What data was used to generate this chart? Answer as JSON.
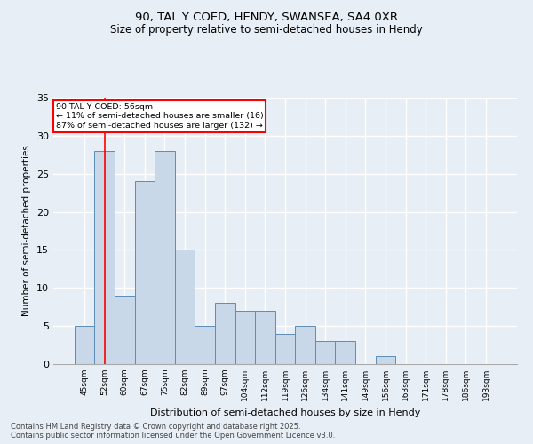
{
  "title1": "90, TAL Y COED, HENDY, SWANSEA, SA4 0XR",
  "title2": "Size of property relative to semi-detached houses in Hendy",
  "xlabel": "Distribution of semi-detached houses by size in Hendy",
  "ylabel": "Number of semi-detached properties",
  "categories": [
    "45sqm",
    "52sqm",
    "60sqm",
    "67sqm",
    "75sqm",
    "82sqm",
    "89sqm",
    "97sqm",
    "104sqm",
    "112sqm",
    "119sqm",
    "126sqm",
    "134sqm",
    "141sqm",
    "149sqm",
    "156sqm",
    "163sqm",
    "171sqm",
    "178sqm",
    "186sqm",
    "193sqm"
  ],
  "values": [
    5,
    28,
    9,
    24,
    28,
    15,
    5,
    8,
    7,
    7,
    4,
    5,
    3,
    3,
    0,
    1,
    0,
    0,
    0,
    0,
    0
  ],
  "bar_color": "#c8d8e8",
  "bar_edge_color": "#5b8db8",
  "background_color": "#e8eef5",
  "grid_color": "#ffffff",
  "red_line_x": 1,
  "annotation_title": "90 TAL Y COED: 56sqm",
  "annotation_line1": "← 11% of semi-detached houses are smaller (16)",
  "annotation_line2": "87% of semi-detached houses are larger (132) →",
  "footer1": "Contains HM Land Registry data © Crown copyright and database right 2025.",
  "footer2": "Contains public sector information licensed under the Open Government Licence v3.0.",
  "ylim": [
    0,
    35
  ],
  "yticks": [
    0,
    5,
    10,
    15,
    20,
    25,
    30,
    35
  ]
}
